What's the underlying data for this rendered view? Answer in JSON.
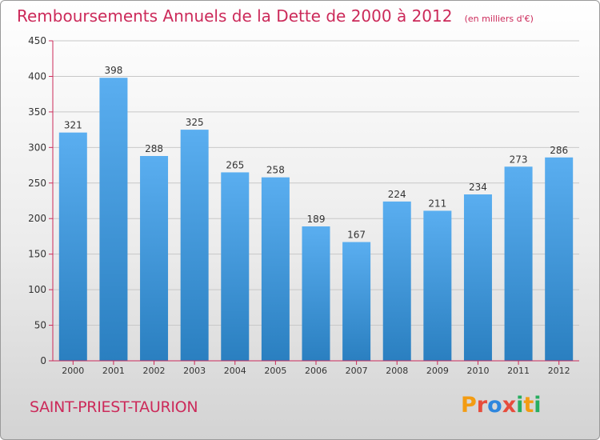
{
  "header": {
    "title": "Remboursements Annuels de la Dette de 2000 à 2012",
    "subtitle": "(en milliers d'€)"
  },
  "footer": {
    "town": "SAINT-PRIEST-TAURION",
    "logo_letters": [
      "P",
      "r",
      "o",
      "x",
      "i",
      "t",
      "i"
    ],
    "logo_colors": [
      "#f39c12",
      "#e74c3c",
      "#2e86de",
      "#e74c3c",
      "#27ae60",
      "#f39c12",
      "#27ae60"
    ]
  },
  "colors": {
    "bar_top": "#5aaef0",
    "bar_bottom": "#2a7fc0",
    "axis": "#cc2a5a",
    "grid": "#c8c8c8",
    "label": "#333333"
  },
  "chart_data": {
    "type": "bar",
    "title": "Remboursements Annuels de la Dette de 2000 à 2012",
    "subtitle": "(en milliers d'€)",
    "categories": [
      "2000",
      "2001",
      "2002",
      "2003",
      "2004",
      "2005",
      "2006",
      "2007",
      "2008",
      "2009",
      "2010",
      "2011",
      "2012"
    ],
    "values": [
      321,
      398,
      288,
      325,
      265,
      258,
      189,
      167,
      224,
      211,
      234,
      273,
      286
    ],
    "ylim": [
      0,
      450
    ],
    "yticks": [
      0,
      50,
      100,
      150,
      200,
      250,
      300,
      350,
      400,
      450
    ],
    "grid": true,
    "data_labels": true
  }
}
